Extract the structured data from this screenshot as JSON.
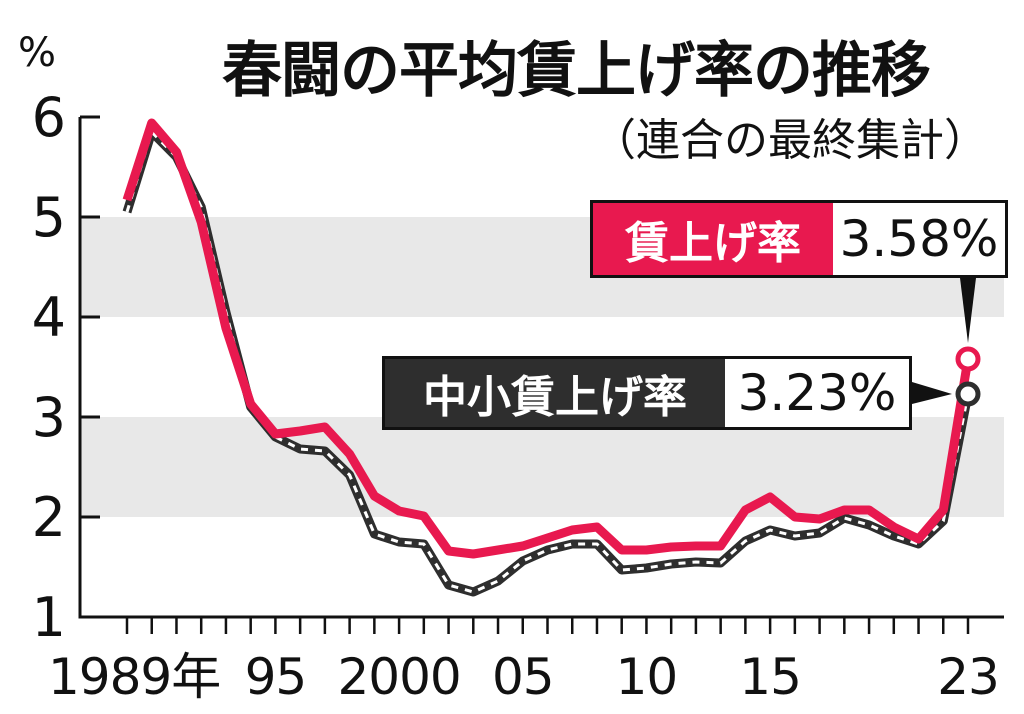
{
  "chart_data": {
    "type": "line",
    "title": "春闘の平均賃上げ率の推移",
    "subtitle": "（連合の最終集計）",
    "ylabel": "%",
    "ylim": [
      1,
      6
    ],
    "yticks": [
      1,
      2,
      3,
      4,
      5,
      6
    ],
    "xlim": [
      1989,
      2023
    ],
    "xtick_labels": [
      {
        "x": 1989,
        "label": "1989年"
      },
      {
        "x": 1995,
        "label": "95"
      },
      {
        "x": 2000,
        "label": "2000"
      },
      {
        "x": 2005,
        "label": "05"
      },
      {
        "x": 2010,
        "label": "10"
      },
      {
        "x": 2015,
        "label": "15"
      },
      {
        "x": 2023,
        "label": "23"
      }
    ],
    "x": [
      1989,
      1990,
      1991,
      1992,
      1993,
      1994,
      1995,
      1996,
      1997,
      1998,
      1999,
      2000,
      2001,
      2002,
      2003,
      2004,
      2005,
      2006,
      2007,
      2008,
      2009,
      2010,
      2011,
      2012,
      2013,
      2014,
      2015,
      2016,
      2017,
      2018,
      2019,
      2020,
      2021,
      2022,
      2023
    ],
    "series": [
      {
        "name": "賃上げ率",
        "color": "#e8194f",
        "style": "solid",
        "values": [
          5.17,
          5.94,
          5.65,
          4.95,
          3.89,
          3.13,
          2.83,
          2.86,
          2.9,
          2.63,
          2.21,
          2.06,
          2.01,
          1.66,
          1.63,
          1.67,
          1.71,
          1.79,
          1.87,
          1.9,
          1.67,
          1.67,
          1.7,
          1.71,
          1.71,
          2.07,
          2.2,
          2.0,
          1.98,
          2.07,
          2.07,
          1.9,
          1.78,
          2.07,
          3.58
        ]
      },
      {
        "name": "中小賃上げ率",
        "color": "#2e2e2e",
        "style": "dashed",
        "values": [
          5.05,
          5.85,
          5.6,
          5.1,
          4.05,
          3.1,
          2.8,
          2.68,
          2.66,
          2.42,
          1.83,
          1.75,
          1.73,
          1.32,
          1.25,
          1.36,
          1.56,
          1.67,
          1.73,
          1.73,
          1.47,
          1.49,
          1.53,
          1.55,
          1.54,
          1.76,
          1.87,
          1.81,
          1.84,
          1.99,
          1.92,
          1.81,
          1.73,
          1.96,
          3.23
        ]
      }
    ],
    "bands": [
      [
        2,
        3
      ],
      [
        4,
        5
      ]
    ],
    "band_color": "#e8e8e8",
    "callouts": {
      "main": {
        "label": "賃上げ率",
        "value": "3.58%"
      },
      "sme": {
        "label": "中小賃上げ率",
        "value": "3.23%"
      }
    }
  }
}
